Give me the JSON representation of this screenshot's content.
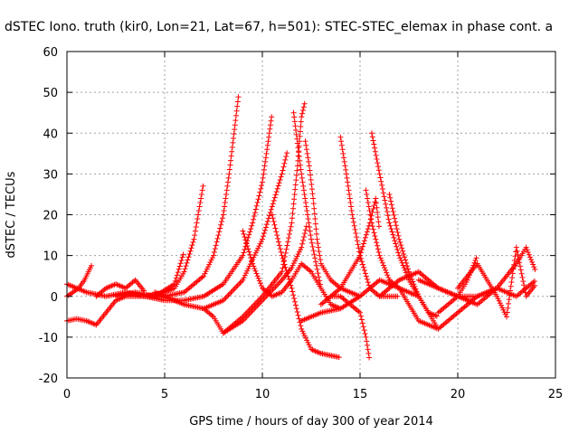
{
  "chart_data": {
    "type": "scatter",
    "title": "dSTEC Iono. truth (kir0, Lon=21, Lat=67, h=501): STEC-STEC_elemax in phase cont. a",
    "xlabel": "GPS time / hours of day 300 of year 2014",
    "ylabel": "dSTEC  / TECUs",
    "xlim": [
      0,
      25
    ],
    "ylim": [
      -20,
      60
    ],
    "x_ticks": [
      "0",
      "5",
      "10",
      "15",
      "20",
      "25"
    ],
    "y_ticks": [
      "-20",
      "-10",
      "0",
      "10",
      "20",
      "30",
      "40",
      "50",
      "60"
    ],
    "grid": true,
    "marker": "+",
    "color": "#ff0000",
    "series": [
      {
        "x": [
          0.0,
          0.3,
          0.6,
          0.9,
          1.1,
          1.3
        ],
        "y": [
          0,
          1,
          2,
          4,
          6,
          8
        ]
      },
      {
        "x": [
          0.0,
          0.5,
          1.0,
          1.5,
          2.0,
          2.5,
          3.0
        ],
        "y": [
          -6,
          -5.5,
          -6,
          -7,
          -4,
          -1,
          0
        ]
      },
      {
        "x": [
          0.0,
          1.0,
          2.0,
          3.0,
          4.0,
          5.0,
          5.5,
          6.0,
          6.5,
          7.0
        ],
        "y": [
          3,
          1,
          0,
          1,
          0,
          1,
          2,
          6,
          14,
          28
        ]
      },
      {
        "x": [
          1.5,
          2.0,
          2.5,
          3.0,
          3.5,
          4.0
        ],
        "y": [
          0,
          2,
          3,
          2,
          4,
          1
        ]
      },
      {
        "x": [
          2.5,
          3.5,
          4.5,
          5.5,
          6.0
        ],
        "y": [
          0,
          1,
          0,
          3,
          11
        ]
      },
      {
        "x": [
          3.0,
          4.0,
          5.0,
          6.0,
          7.0,
          7.5,
          8.0,
          8.3,
          8.6,
          8.8
        ],
        "y": [
          0,
          0,
          0,
          1,
          5,
          10,
          20,
          30,
          42,
          50
        ]
      },
      {
        "x": [
          4.0,
          5.0,
          6.0,
          7.0,
          8.0,
          9.0,
          9.5,
          10.0,
          10.3,
          10.5
        ],
        "y": [
          0,
          -1,
          -1,
          0,
          3,
          10,
          18,
          28,
          38,
          45
        ]
      },
      {
        "x": [
          4.5,
          6.0,
          7.0,
          8.0,
          9.0,
          10.0,
          10.5,
          11.0,
          11.3
        ],
        "y": [
          1,
          -2,
          -3,
          -1,
          4,
          14,
          22,
          30,
          36
        ]
      },
      {
        "x": [
          7.0,
          7.5,
          8.0,
          9.0,
          10.0,
          11.0,
          11.5,
          12.0,
          12.3
        ],
        "y": [
          -3,
          -5,
          -9,
          -6,
          -1,
          4,
          7,
          12,
          18
        ]
      },
      {
        "x": [
          8.0,
          9.0,
          10.0,
          11.0,
          11.5,
          11.8,
          12.0,
          12.2
        ],
        "y": [
          -9,
          -5,
          0,
          6,
          18,
          32,
          44,
          48
        ]
      },
      {
        "x": [
          9.0,
          9.5,
          10.0,
          10.5,
          11.0,
          11.5,
          12.0,
          12.5,
          13.0
        ],
        "y": [
          16,
          8,
          2,
          0,
          1,
          4,
          8,
          6,
          2
        ]
      },
      {
        "x": [
          11.6,
          12.0,
          12.5,
          13.0,
          13.5,
          14.0
        ],
        "y": [
          45,
          30,
          14,
          2,
          -2,
          -3
        ]
      },
      {
        "x": [
          12.2,
          12.4,
          12.6,
          12.8,
          13.0,
          13.5,
          14.0,
          15.0
        ],
        "y": [
          38,
          32,
          24,
          14,
          8,
          4,
          2,
          0
        ]
      },
      {
        "x": [
          10.5,
          11.0,
          11.5,
          12.0,
          12.5,
          13.0,
          14.0
        ],
        "y": [
          20,
          10,
          2,
          -8,
          -13,
          -14,
          -15
        ]
      },
      {
        "x": [
          12.0,
          13.0,
          14.0,
          15.0,
          16.0,
          17.0,
          18.0
        ],
        "y": [
          -6,
          -4,
          -3,
          0,
          4,
          2,
          0
        ]
      },
      {
        "x": [
          14.0,
          14.3,
          14.6,
          15.0,
          15.5,
          16.0,
          17.0
        ],
        "y": [
          39,
          30,
          20,
          10,
          2,
          0,
          0
        ]
      },
      {
        "x": [
          13.0,
          14.0,
          15.0,
          15.5,
          15.8,
          16.0
        ],
        "y": [
          -2,
          2,
          10,
          18,
          24,
          16
        ]
      },
      {
        "x": [
          13.5,
          14.0,
          14.5,
          15.0,
          15.3,
          15.5
        ],
        "y": [
          0,
          0,
          -2,
          -4,
          -10,
          -16
        ]
      },
      {
        "x": [
          15.6,
          16.0,
          16.5,
          17.0,
          17.5,
          18.0,
          18.5,
          19.0
        ],
        "y": [
          40,
          30,
          18,
          10,
          4,
          0,
          -4,
          -8
        ]
      },
      {
        "x": [
          15.3,
          15.6,
          16.0,
          16.5,
          17.0
        ],
        "y": [
          26,
          18,
          10,
          4,
          2
        ]
      },
      {
        "x": [
          16.5,
          17.0,
          17.5,
          18.0,
          18.5,
          19.0
        ],
        "y": [
          25,
          14,
          6,
          0,
          -4,
          -5
        ]
      },
      {
        "x": [
          16.0,
          17.0,
          18.0,
          19.0,
          20.0,
          20.5,
          21.0
        ],
        "y": [
          0,
          4,
          6,
          2,
          0,
          4,
          10
        ]
      },
      {
        "x": [
          17.0,
          18.0,
          19.0,
          20.0,
          21.0,
          22.0
        ],
        "y": [
          2,
          -6,
          -8,
          -4,
          0,
          2
        ]
      },
      {
        "x": [
          18.0,
          19.0,
          20.0,
          21.0,
          22.0,
          23.0,
          24.0
        ],
        "y": [
          4,
          2,
          0,
          0,
          2,
          0,
          4
        ]
      },
      {
        "x": [
          19.0,
          20.0,
          21.0,
          22.0,
          22.5,
          23.0,
          23.5,
          24.0
        ],
        "y": [
          -4,
          0,
          -2,
          2,
          5,
          8,
          12,
          6
        ]
      },
      {
        "x": [
          20.0,
          21.0,
          22.0,
          22.5,
          23.0,
          23.5,
          24.0
        ],
        "y": [
          2,
          8,
          0,
          -5,
          12,
          0,
          3
        ]
      }
    ]
  }
}
